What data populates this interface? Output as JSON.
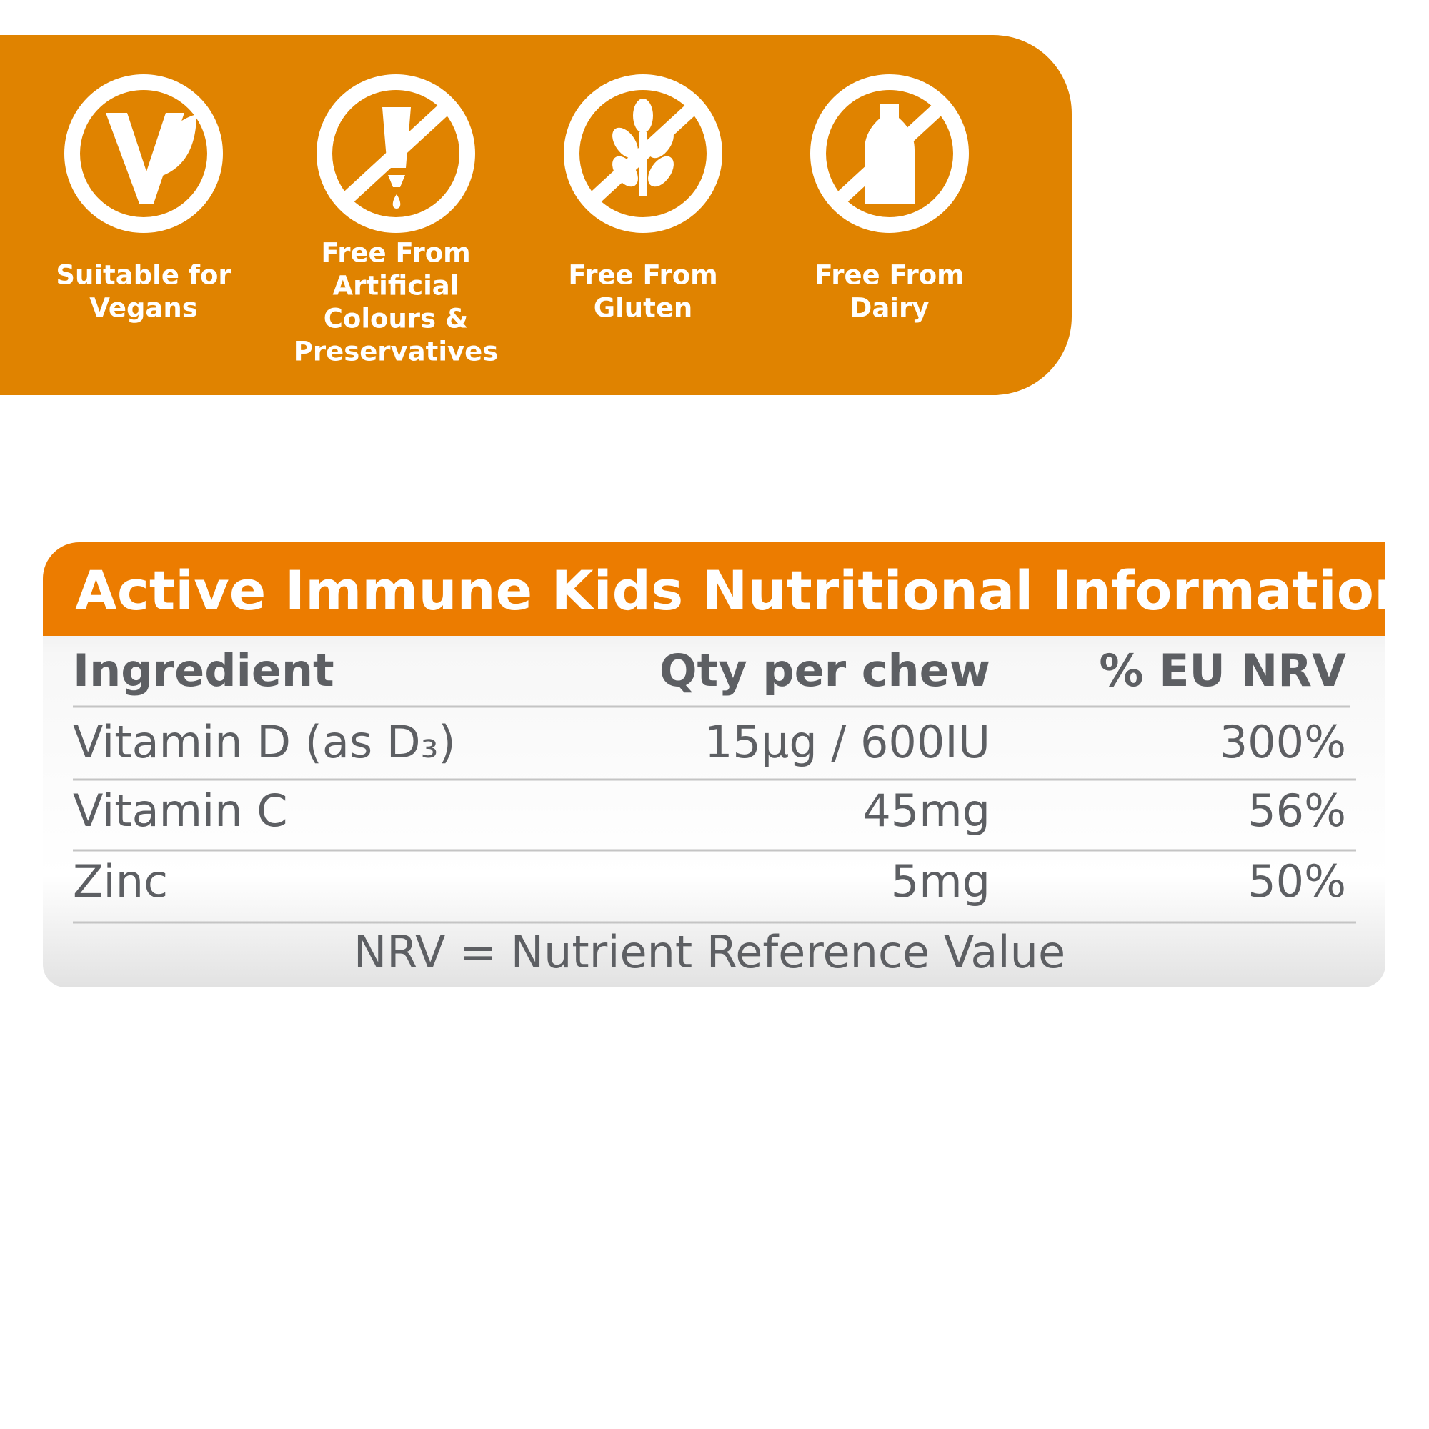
{
  "badges": [
    {
      "label": [
        "Suitable for",
        "Vegans"
      ]
    },
    {
      "label": [
        "Free From",
        "Artificial",
        "Colours &",
        "Preservatives"
      ]
    },
    {
      "label": [
        "Free From",
        "Gluten"
      ]
    },
    {
      "label": [
        "Free From",
        "Dairy"
      ]
    }
  ],
  "table": {
    "title": "Active Immune Kids Nutritional Information",
    "header": [
      "Ingredient",
      "Qty per chew",
      "% EU NRV"
    ],
    "rows": [
      [
        "Vitamin D (as D₃)",
        "15µg / 600IU",
        "300%"
      ],
      [
        "Vitamin C",
        "45mg",
        "56%"
      ],
      [
        "Zinc",
        "5mg",
        "50%"
      ]
    ],
    "footnote": "NRV = Nutrient Reference Value"
  }
}
